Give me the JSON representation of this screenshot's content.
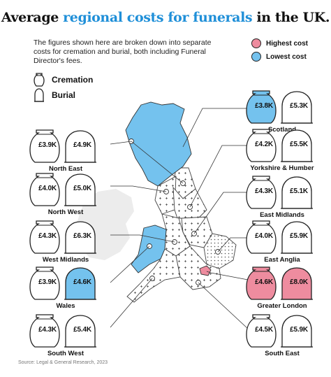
{
  "header": {
    "title_before": "Average ",
    "title_accent": "regional costs for funerals",
    "title_after": " in the UK.",
    "intro": "The figures shown here are broken down into separate costs for cremation and burial, both including Funeral Director's fees."
  },
  "colors": {
    "highest": "#ee8c9f",
    "lowest": "#74c2ee",
    "accent": "#1f8fd8",
    "neutral_land": "#ffffff",
    "shadow_land": "#ececec"
  },
  "legend": {
    "highest_label": "Highest cost",
    "lowest_label": "Lowest cost",
    "cremation_label": "Cremation",
    "burial_label": "Burial",
    "cremation_icon": "urn-icon",
    "burial_icon": "headstone-icon"
  },
  "regions": [
    {
      "id": "scotland",
      "name": "Scotland",
      "cremation": "£3.8K",
      "burial": "£5.3K",
      "cremation_level": "lowest",
      "burial_level": "none"
    },
    {
      "id": "north-east",
      "name": "North East",
      "cremation": "£3.9K",
      "burial": "£4.9K",
      "cremation_level": "none",
      "burial_level": "none"
    },
    {
      "id": "yorkshire",
      "name": "Yorkshire & Humber",
      "cremation": "£4.2K",
      "burial": "£5.5K",
      "cremation_level": "none",
      "burial_level": "none"
    },
    {
      "id": "north-west",
      "name": "North West",
      "cremation": "£4.0K",
      "burial": "£5.0K",
      "cremation_level": "none",
      "burial_level": "none"
    },
    {
      "id": "east-midlands",
      "name": "East Midlands",
      "cremation": "£4.3K",
      "burial": "£5.1K",
      "cremation_level": "none",
      "burial_level": "none"
    },
    {
      "id": "west-midlands",
      "name": "West Midlands",
      "cremation": "£4.3K",
      "burial": "£6.3K",
      "cremation_level": "none",
      "burial_level": "none"
    },
    {
      "id": "east-anglia",
      "name": "East Anglia",
      "cremation": "£4.0K",
      "burial": "£5.9K",
      "cremation_level": "none",
      "burial_level": "none"
    },
    {
      "id": "wales",
      "name": "Wales",
      "cremation": "£3.9K",
      "burial": "£4.6K",
      "cremation_level": "none",
      "burial_level": "lowest"
    },
    {
      "id": "greater-london",
      "name": "Greater London",
      "cremation": "£4.6K",
      "burial": "£8.0K",
      "cremation_level": "highest",
      "burial_level": "highest"
    },
    {
      "id": "south-west",
      "name": "South West",
      "cremation": "£4.3K",
      "burial": "£5.4K",
      "cremation_level": "none",
      "burial_level": "none"
    },
    {
      "id": "south-east",
      "name": "South East",
      "cremation": "£4.5K",
      "burial": "£5.9K",
      "cremation_level": "none",
      "burial_level": "none"
    }
  ],
  "source": "Source: Legal & General Research, 2023"
}
